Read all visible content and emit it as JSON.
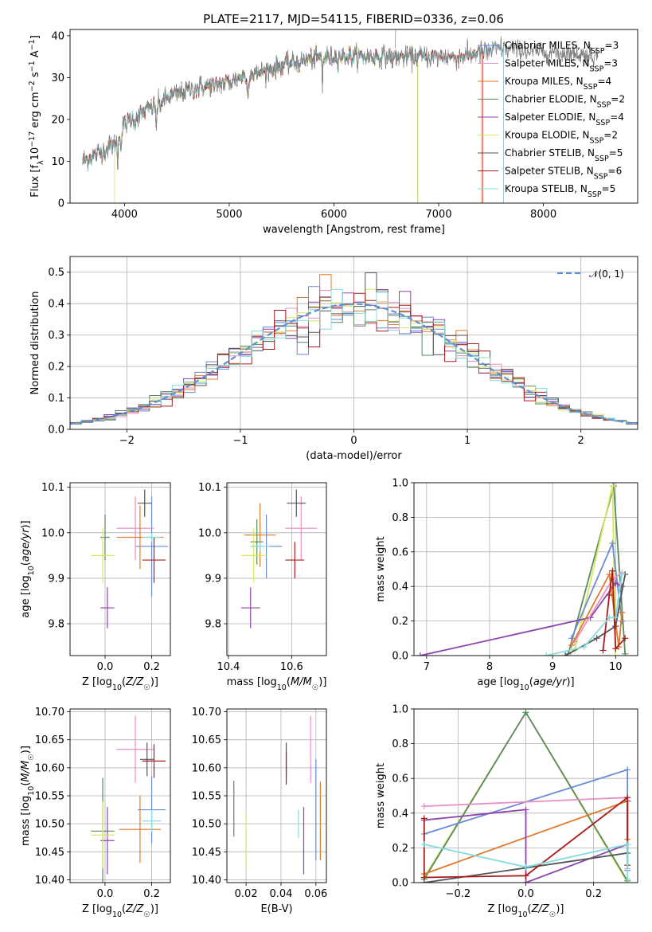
{
  "figure": {
    "title": "PLATE=2117, MJD=54115, FIBERID=0336, z=0.06"
  },
  "colors": {
    "chabrier_miles": "#6a8bd8",
    "salpeter_miles": "#e88fc6",
    "kroupa_miles": "#e07a2a",
    "chabrier_elodie": "#5a8a64",
    "salpeter_elodie": "#8e44ad",
    "kroupa_elodie": "#d5ea5b",
    "chabrier_stelib": "#555555",
    "salpeter_stelib": "#a81c1c",
    "kroupa_stelib": "#86dcdc",
    "data_grey": "#808080",
    "grid": "#b0b0b0",
    "normal": "#5b8fd6"
  },
  "chart_data": [
    {
      "id": "spectrum",
      "type": "line",
      "title": "PLATE=2117, MJD=54115, FIBERID=0336, z=0.06",
      "xlabel": "wavelength [Angstrom, rest frame]",
      "ylabel": "Flux [f_λ 10^-17 erg cm^-2 s^-1 A^-1]",
      "xlim": [
        3480,
        8900
      ],
      "ylim": [
        0,
        41.5
      ],
      "xticks": [
        4000,
        5000,
        6000,
        7000,
        8000
      ],
      "yticks": [
        0,
        10,
        20,
        30,
        40
      ],
      "grid": false,
      "legend_position": "right",
      "continuum_knots": [
        [
          3600,
          10
        ],
        [
          3750,
          12
        ],
        [
          3900,
          14
        ],
        [
          4000,
          19
        ],
        [
          4200,
          22
        ],
        [
          4400,
          25
        ],
        [
          4600,
          27
        ],
        [
          4800,
          28
        ],
        [
          5000,
          29
        ],
        [
          5200,
          31
        ],
        [
          5400,
          32
        ],
        [
          5600,
          33.5
        ],
        [
          5800,
          34.5
        ],
        [
          6000,
          35
        ],
        [
          6200,
          35
        ],
        [
          6400,
          35
        ],
        [
          6600,
          35
        ],
        [
          6800,
          35
        ],
        [
          7000,
          35
        ],
        [
          7200,
          35
        ],
        [
          7400,
          36
        ],
        [
          7600,
          37
        ],
        [
          7800,
          36.5
        ],
        [
          8000,
          36
        ],
        [
          8200,
          36
        ],
        [
          8400,
          35.5
        ],
        [
          8520,
          35
        ]
      ],
      "series": [
        {
          "name": "Chabrier MILES, N_SSP=3",
          "color_key": "chabrier_miles",
          "xmax": 7620
        },
        {
          "name": "Salpeter MILES, N_SSP=3",
          "color_key": "salpeter_miles",
          "xmax": 7620
        },
        {
          "name": "Kroupa MILES, N_SSP=4",
          "color_key": "kroupa_miles",
          "xmax": 7410
        },
        {
          "name": "Chabrier ELODIE, N_SSP=2",
          "color_key": "chabrier_elodie",
          "xmax": 6800
        },
        {
          "name": "Salpeter ELODIE, N_SSP=4",
          "color_key": "salpeter_elodie",
          "xmax": 6800
        },
        {
          "name": "Kroupa ELODIE, N_SSP=2",
          "color_key": "kroupa_elodie",
          "xmax": 6800
        },
        {
          "name": "Chabrier STELIB, N_SSP=5",
          "color_key": "chabrier_stelib",
          "xmax": 8520
        },
        {
          "name": "Salpeter STELIB, N_SSP=6",
          "color_key": "salpeter_stelib",
          "xmax": 7420
        },
        {
          "name": "Kroupa STELIB, N_SSP=5",
          "color_key": "kroupa_stelib",
          "xmax": 7620
        }
      ]
    },
    {
      "id": "residuals",
      "type": "line",
      "xlabel": "(data-model)/error",
      "ylabel": "Normed distribution",
      "xlim": [
        -2.5,
        2.5
      ],
      "ylim": [
        0,
        0.55
      ],
      "xticks": [
        -2,
        -1,
        0,
        1,
        2
      ],
      "yticks": [
        0.0,
        0.1,
        0.2,
        0.3,
        0.4,
        0.5
      ],
      "grid": true,
      "legend_position": "top-right",
      "legend": "N(0,1)",
      "bin_width": 0.1,
      "histogram_series_color_keys": [
        "chabrier_miles",
        "salpeter_miles",
        "kroupa_miles",
        "chabrier_elodie",
        "salpeter_elodie",
        "kroupa_elodie",
        "chabrier_stelib",
        "salpeter_stelib",
        "kroupa_stelib"
      ]
    },
    {
      "id": "age_vs_Z",
      "type": "scatter",
      "xlabel": "Z [log10(Z/Z☉)]",
      "ylabel": "age [log10(age/yr)]",
      "xlim": [
        -0.15,
        0.28
      ],
      "ylim": [
        9.73,
        10.11
      ],
      "xticks": [
        0.0,
        0.2
      ],
      "yticks": [
        9.8,
        9.9,
        10.0,
        10.1
      ],
      "grid": true,
      "points": [
        {
          "color_key": "chabrier_miles",
          "x": 0.2,
          "xerr": 0.07,
          "y": 9.97,
          "yerr": 0.11
        },
        {
          "color_key": "salpeter_miles",
          "x": 0.13,
          "xerr": 0.08,
          "y": 10.01,
          "yerr": 0.07
        },
        {
          "color_key": "kroupa_miles",
          "x": 0.15,
          "xerr": 0.1,
          "y": 9.99,
          "yerr": 0.07
        },
        {
          "color_key": "chabrier_elodie",
          "x": 0.0,
          "xerr": 0.02,
          "y": 9.99,
          "yerr": 0.05
        },
        {
          "color_key": "salpeter_elodie",
          "x": 0.01,
          "xerr": 0.03,
          "y": 9.835,
          "yerr": 0.045
        },
        {
          "color_key": "kroupa_elodie",
          "x": -0.01,
          "xerr": 0.05,
          "y": 9.95,
          "yerr": 0.06
        },
        {
          "color_key": "chabrier_stelib",
          "x": 0.17,
          "xerr": 0.03,
          "y": 10.065,
          "yerr": 0.03
        },
        {
          "color_key": "salpeter_stelib",
          "x": 0.21,
          "xerr": 0.05,
          "y": 9.94,
          "yerr": 0.05
        },
        {
          "color_key": "kroupa_stelib",
          "x": 0.2,
          "xerr": 0.04,
          "y": 9.99,
          "yerr": 0.01
        }
      ]
    },
    {
      "id": "age_vs_mass",
      "type": "scatter",
      "xlabel": "mass [log10(M/M☉)]",
      "ylabel": "",
      "xlim": [
        10.395,
        10.71
      ],
      "ylim": [
        9.73,
        10.11
      ],
      "xticks": [
        10.4,
        10.6
      ],
      "yticks": [
        9.8,
        9.9,
        10.0,
        10.1
      ],
      "grid": true,
      "points": [
        {
          "color_key": "chabrier_miles",
          "x": 10.52,
          "xerr": 0.05,
          "y": 9.97,
          "yerr": 0.07
        },
        {
          "color_key": "salpeter_miles",
          "x": 10.63,
          "xerr": 0.05,
          "y": 10.01,
          "yerr": 0.07
        },
        {
          "color_key": "kroupa_miles",
          "x": 10.5,
          "xerr": 0.05,
          "y": 9.995,
          "yerr": 0.07
        },
        {
          "color_key": "chabrier_elodie",
          "x": 10.49,
          "xerr": 0.02,
          "y": 9.98,
          "yerr": 0.05
        },
        {
          "color_key": "salpeter_elodie",
          "x": 10.47,
          "xerr": 0.03,
          "y": 9.835,
          "yerr": 0.045
        },
        {
          "color_key": "kroupa_elodie",
          "x": 10.48,
          "xerr": 0.04,
          "y": 9.95,
          "yerr": 0.06
        },
        {
          "color_key": "chabrier_stelib",
          "x": 10.615,
          "xerr": 0.03,
          "y": 10.065,
          "yerr": 0.03
        },
        {
          "color_key": "salpeter_stelib",
          "x": 10.61,
          "xerr": 0.03,
          "y": 9.94,
          "yerr": 0.04
        },
        {
          "color_key": "kroupa_stelib",
          "x": 10.5,
          "xerr": 0.03,
          "y": 9.97,
          "yerr": 0.01
        }
      ]
    },
    {
      "id": "weight_vs_age",
      "type": "line",
      "xlabel": "age [log10(age/yr)]",
      "ylabel": "mass weight",
      "xlim": [
        6.8,
        10.35
      ],
      "ylim": [
        0,
        1.0
      ],
      "xticks": [
        7,
        8,
        9,
        10
      ],
      "yticks": [
        0.0,
        0.2,
        0.4,
        0.6,
        0.8,
        1.0
      ],
      "grid": true,
      "series": [
        {
          "color_key": "chabrier_elodie",
          "x": [
            9.25,
            9.97,
            10.15
          ],
          "y": [
            0.01,
            0.98,
            0.01
          ]
        },
        {
          "color_key": "kroupa_elodie",
          "x": [
            9.35,
            9.95,
            10.0
          ],
          "y": [
            0.03,
            0.98,
            0.0
          ]
        },
        {
          "color_key": "chabrier_miles",
          "x": [
            9.3,
            9.95,
            10.1
          ],
          "y": [
            0.1,
            0.65,
            0.2
          ]
        },
        {
          "color_key": "salpeter_elodie",
          "x": [
            6.9,
            9.6,
            10.0,
            10.1
          ],
          "y": [
            0.0,
            0.22,
            0.42,
            0.4
          ]
        },
        {
          "color_key": "salpeter_miles",
          "x": [
            9.35,
            9.95,
            10.1
          ],
          "y": [
            0.08,
            0.44,
            0.48
          ]
        },
        {
          "color_key": "kroupa_miles",
          "x": [
            9.3,
            9.9,
            10.05,
            10.1
          ],
          "y": [
            0.06,
            0.47,
            0.05,
            0.25
          ]
        },
        {
          "color_key": "chabrier_stelib",
          "x": [
            9.2,
            9.7,
            10.0,
            10.15
          ],
          "y": [
            0.0,
            0.1,
            0.17,
            0.47
          ]
        },
        {
          "color_key": "salpeter_stelib",
          "x": [
            9.8,
            9.9,
            9.95,
            10.0,
            10.15
          ],
          "y": [
            0.03,
            0.35,
            0.49,
            0.04,
            0.1
          ]
        },
        {
          "color_key": "kroupa_stelib",
          "x": [
            8.9,
            9.5,
            9.9,
            10.0,
            10.1
          ],
          "y": [
            0.0,
            0.05,
            0.22,
            0.22,
            0.47
          ]
        }
      ]
    },
    {
      "id": "mass_vs_Z",
      "type": "scatter",
      "xlabel": "Z [log10(Z/Z☉)]",
      "ylabel": "mass [log10(M/M☉)]",
      "xlim": [
        -0.15,
        0.28
      ],
      "ylim": [
        10.395,
        10.705
      ],
      "xticks": [
        0.0,
        0.2
      ],
      "yticks": [
        10.4,
        10.45,
        10.5,
        10.55,
        10.6,
        10.65,
        10.7
      ],
      "grid": true,
      "points": [
        {
          "color_key": "chabrier_miles",
          "x": 0.2,
          "xerr": 0.06,
          "y": 10.525,
          "yerr": 0.06
        },
        {
          "color_key": "salpeter_miles",
          "x": 0.13,
          "xerr": 0.08,
          "y": 10.633,
          "yerr": 0.06
        },
        {
          "color_key": "kroupa_miles",
          "x": 0.15,
          "xerr": 0.09,
          "y": 10.49,
          "yerr": 0.06
        },
        {
          "color_key": "chabrier_elodie",
          "x": -0.01,
          "xerr": 0.05,
          "y": 10.487,
          "yerr": 0.095
        },
        {
          "color_key": "salpeter_elodie",
          "x": 0.01,
          "xerr": 0.03,
          "y": 10.47,
          "yerr": 0.06
        },
        {
          "color_key": "kroupa_elodie",
          "x": -0.01,
          "xerr": 0.05,
          "y": 10.48,
          "yerr": 0.06
        },
        {
          "color_key": "chabrier_stelib",
          "x": 0.18,
          "xerr": 0.03,
          "y": 10.615,
          "yerr": 0.03
        },
        {
          "color_key": "salpeter_stelib",
          "x": 0.21,
          "xerr": 0.05,
          "y": 10.612,
          "yerr": 0.03
        },
        {
          "color_key": "kroupa_stelib",
          "x": 0.2,
          "xerr": 0.04,
          "y": 10.505,
          "yerr": 0.02
        }
      ]
    },
    {
      "id": "mass_vs_ebv",
      "type": "scatter",
      "xlabel": "E(B-V)",
      "ylabel": "",
      "xlim": [
        0.009,
        0.066
      ],
      "ylim": [
        10.395,
        10.705
      ],
      "xticks": [
        0.02,
        0.04,
        0.06
      ],
      "yticks": [
        10.4,
        10.45,
        10.5,
        10.55,
        10.6,
        10.65,
        10.7
      ],
      "grid": true,
      "points": [
        {
          "color_key": "chabrier_miles",
          "x": 0.06,
          "xerr": 0.0,
          "y": 10.525,
          "yerr": 0.09
        },
        {
          "color_key": "salpeter_miles",
          "x": 0.057,
          "xerr": 0.0,
          "y": 10.633,
          "yerr": 0.06
        },
        {
          "color_key": "kroupa_miles",
          "x": 0.0625,
          "xerr": 0.0,
          "y": 10.505,
          "yerr": 0.07
        },
        {
          "color_key": "chabrier_elodie",
          "x": 0.013,
          "xerr": 0.0,
          "y": 10.527,
          "yerr": 0.05
        },
        {
          "color_key": "salpeter_elodie",
          "x": 0.053,
          "xerr": 0.0,
          "y": 10.47,
          "yerr": 0.06
        },
        {
          "color_key": "kroupa_elodie",
          "x": 0.02,
          "xerr": 0.0,
          "y": 10.47,
          "yerr": 0.05
        },
        {
          "color_key": "chabrier_stelib",
          "x": 0.043,
          "xerr": 0.0,
          "y": 10.615,
          "yerr": 0.03
        },
        {
          "color_key": "salpeter_stelib",
          "x": 0.043,
          "xerr": 0.0,
          "y": 10.6,
          "yerr": 0.03
        },
        {
          "color_key": "kroupa_stelib",
          "x": 0.05,
          "xerr": 0.0,
          "y": 10.5,
          "yerr": 0.025
        }
      ]
    },
    {
      "id": "weight_vs_Z",
      "type": "line",
      "xlabel": "Z [log10(Z/Z☉)]",
      "ylabel": "mass weight",
      "xlim": [
        -0.33,
        0.33
      ],
      "ylim": [
        0,
        1.0
      ],
      "xticks": [
        -0.2,
        0.0,
        0.2
      ],
      "yticks": [
        0.0,
        0.2,
        0.4,
        0.6,
        0.8,
        1.0
      ],
      "grid": true,
      "series": [
        {
          "color_key": "kroupa_elodie",
          "x": [
            -0.3,
            0.0,
            0.3
          ],
          "y": [
            0.03,
            0.98,
            0.0
          ]
        },
        {
          "color_key": "chabrier_elodie",
          "x": [
            -0.3,
            0.0,
            0.3
          ],
          "y": [
            0.02,
            0.98,
            0.01
          ]
        },
        {
          "color_key": "chabrier_miles",
          "x": [
            -0.3,
            0.3,
            0.3
          ],
          "y": [
            0.28,
            0.65,
            0.07
          ]
        },
        {
          "color_key": "salpeter_miles",
          "x": [
            -0.3,
            0.3,
            0.3
          ],
          "y": [
            0.44,
            0.49,
            0.08
          ]
        },
        {
          "color_key": "kroupa_miles",
          "x": [
            -0.3,
            0.3,
            0.3
          ],
          "y": [
            0.05,
            0.47,
            0.25
          ]
        },
        {
          "color_key": "salpeter_elodie",
          "x": [
            -0.3,
            0.0,
            0.0,
            0.3
          ],
          "y": [
            0.36,
            0.42,
            0.0,
            0.22
          ]
        },
        {
          "color_key": "chabrier_stelib",
          "x": [
            -0.3,
            0.3,
            0.3
          ],
          "y": [
            0.0,
            0.17,
            0.47
          ]
        },
        {
          "color_key": "salpeter_stelib",
          "x": [
            -0.3,
            -0.3,
            0.0,
            0.3,
            0.3
          ],
          "y": [
            0.37,
            0.03,
            0.04,
            0.49,
            0.1
          ]
        },
        {
          "color_key": "kroupa_stelib",
          "x": [
            -0.3,
            0.0,
            0.3,
            0.3
          ],
          "y": [
            0.22,
            0.09,
            0.22,
            0.02
          ]
        }
      ]
    }
  ]
}
